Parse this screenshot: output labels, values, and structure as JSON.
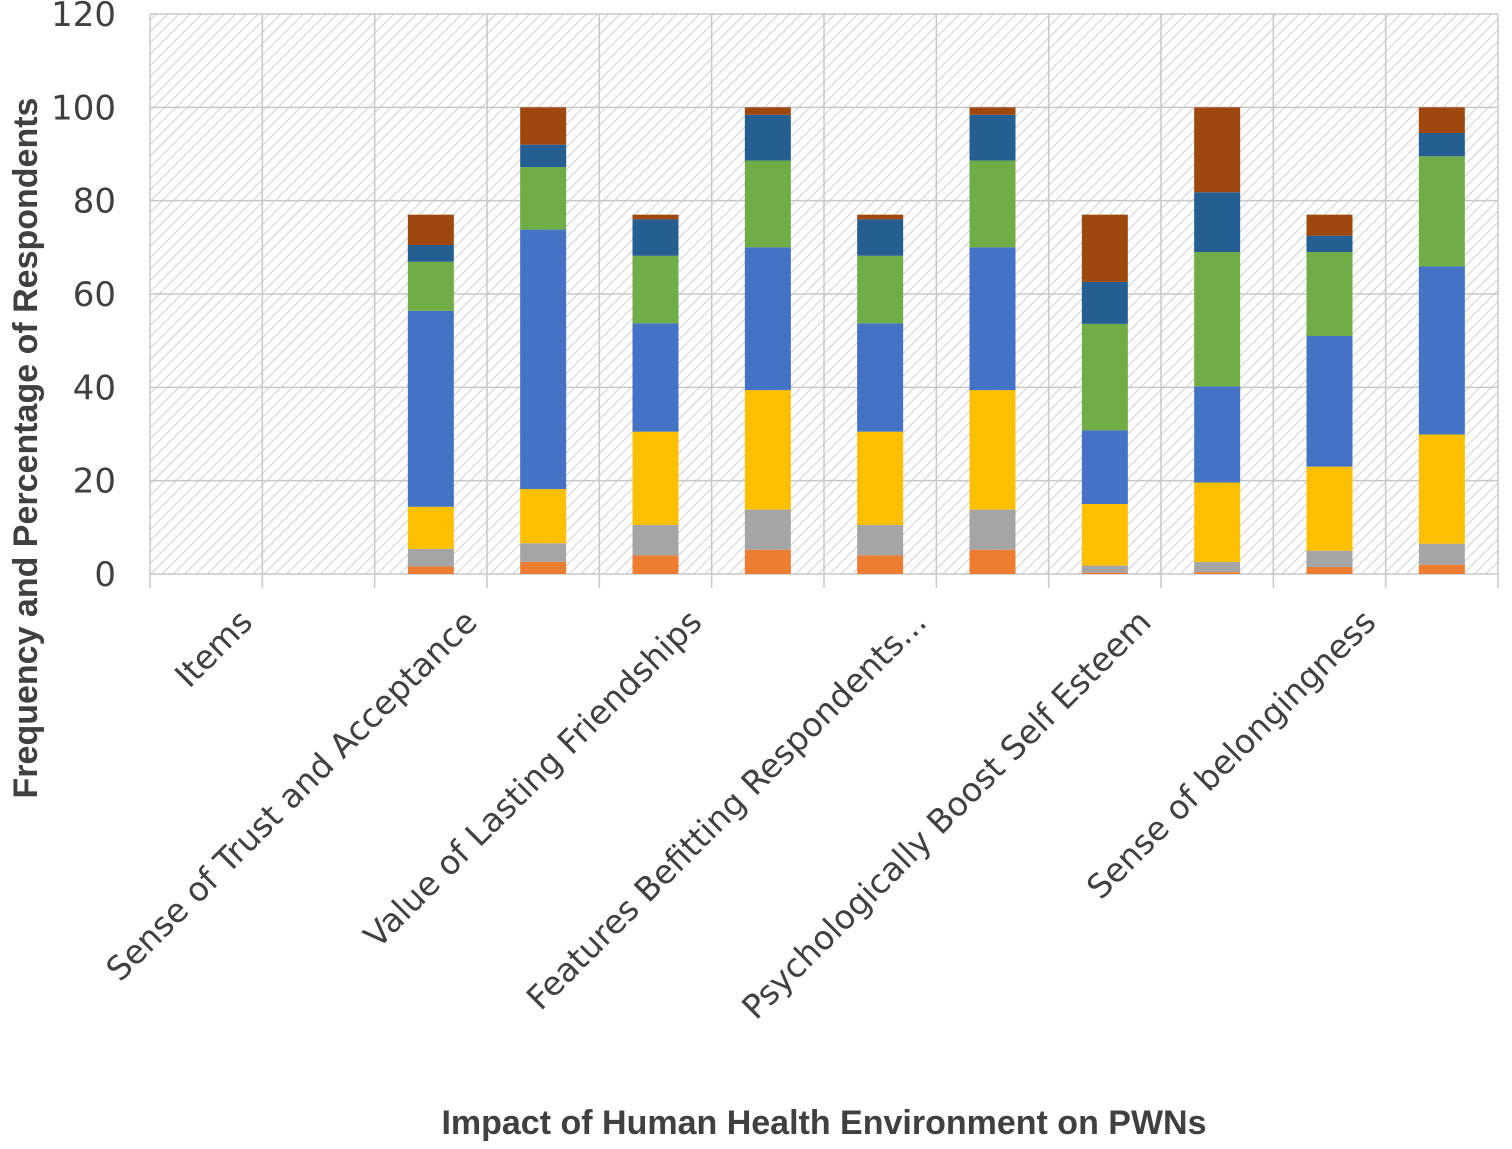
{
  "chart_data": {
    "type": "bar",
    "stacked": true,
    "xlabel": "Impact of Human Health Environment on PWNs",
    "ylabel": "Frequency and  Percentage of Respondents",
    "ylim": [
      0,
      120
    ],
    "yticks": [
      0,
      20,
      40,
      60,
      80,
      100,
      120
    ],
    "grid": true,
    "background_pattern": "diagonal-hatch",
    "category_labels": [
      "Items",
      "Sense of Trust and Acceptance",
      "Value of Lasting Friendships",
      "Features Befitting Respondents...",
      "Psychologically Boost Self Esteem",
      "Sense of belongingness"
    ],
    "slot_count": 12,
    "segment_colors": [
      "#ed7d31",
      "#a5a5a5",
      "#ffc000",
      "#4472c4",
      "#70ad47",
      "#255e91",
      "#9e480e"
    ],
    "bars": [
      {
        "slot": 3,
        "values": [
          1.6,
          3.8,
          9.0,
          42.0,
          10.5,
          3.6,
          6.5
        ]
      },
      {
        "slot": 4,
        "values": [
          2.6,
          4.0,
          11.6,
          55.6,
          13.4,
          4.8,
          8.0
        ]
      },
      {
        "slot": 5,
        "values": [
          4.0,
          6.5,
          20.0,
          23.2,
          14.5,
          7.8,
          1.0
        ]
      },
      {
        "slot": 6,
        "values": [
          5.2,
          8.6,
          25.6,
          30.6,
          18.6,
          9.8,
          1.6
        ]
      },
      {
        "slot": 7,
        "values": [
          4.0,
          6.5,
          20.0,
          23.2,
          14.5,
          7.8,
          1.0
        ]
      },
      {
        "slot": 8,
        "values": [
          5.2,
          8.6,
          25.6,
          30.6,
          18.6,
          9.8,
          1.6
        ]
      },
      {
        "slot": 9,
        "values": [
          0.3,
          1.5,
          13.2,
          15.8,
          22.8,
          9.0,
          14.4
        ]
      },
      {
        "slot": 10,
        "values": [
          0.4,
          2.2,
          17.0,
          20.6,
          28.8,
          12.8,
          18.2
        ]
      },
      {
        "slot": 11,
        "values": [
          1.5,
          3.5,
          18.0,
          28.0,
          18.0,
          3.5,
          4.5
        ]
      },
      {
        "slot": 12,
        "values": [
          2.0,
          4.5,
          23.4,
          36.0,
          23.6,
          5.0,
          5.5
        ]
      }
    ]
  }
}
